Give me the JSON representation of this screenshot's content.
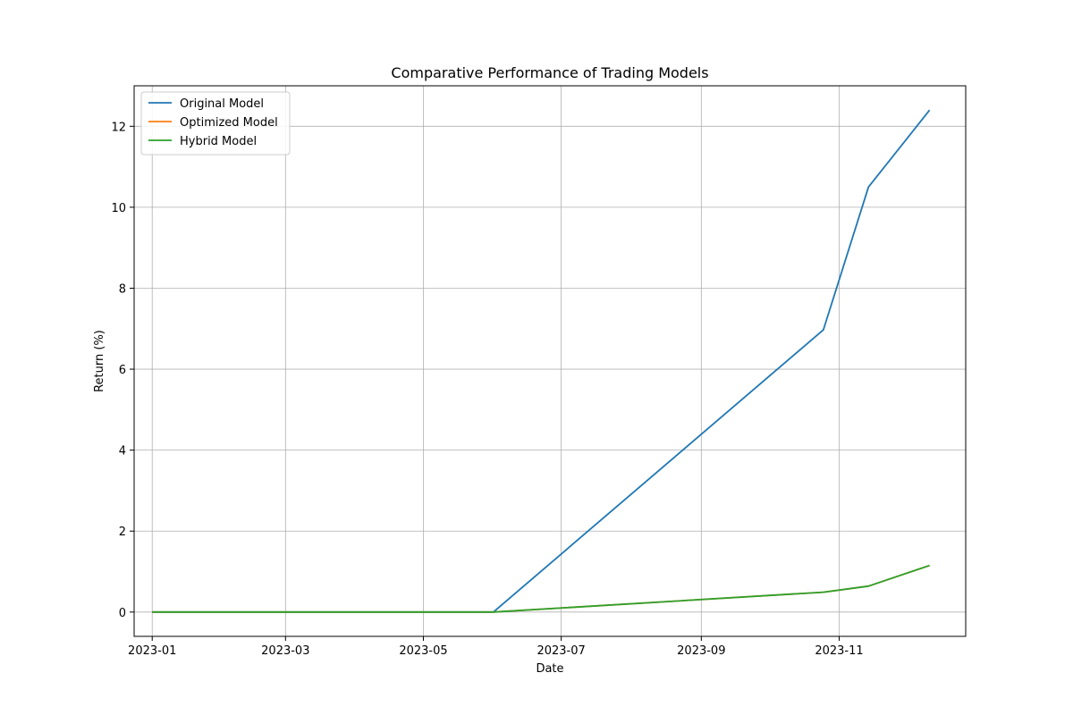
{
  "chart_data": {
    "type": "line",
    "title": "Comparative Performance of Trading Models",
    "xlabel": "Date",
    "ylabel": "Return (%)",
    "x_tick_labels": [
      "2023-01",
      "2023-03",
      "2023-05",
      "2023-07",
      "2023-09",
      "2023-11"
    ],
    "x_tick_dates": [
      "2023-01-01",
      "2023-03-01",
      "2023-05-01",
      "2023-07-01",
      "2023-09-01",
      "2023-11-01"
    ],
    "y_ticks": [
      0,
      2,
      4,
      6,
      8,
      10,
      12
    ],
    "xlim": [
      "2022-12-24",
      "2023-12-27"
    ],
    "ylim": [
      -0.6,
      13.0
    ],
    "grid": true,
    "legend_position": "top-left",
    "series": [
      {
        "name": "Original Model",
        "color": "#1f77b4",
        "points": [
          [
            "2023-01-01",
            0.0
          ],
          [
            "2023-06-01",
            0.0
          ],
          [
            "2023-10-25",
            6.97
          ],
          [
            "2023-11-14",
            10.5
          ],
          [
            "2023-12-11",
            12.4
          ]
        ]
      },
      {
        "name": "Optimized Model",
        "color": "#ff7f0e",
        "points": [
          [
            "2023-01-01",
            0.0
          ],
          [
            "2023-06-01",
            0.0
          ],
          [
            "2023-10-25",
            0.49
          ],
          [
            "2023-11-14",
            0.64
          ],
          [
            "2023-12-11",
            1.15
          ]
        ]
      },
      {
        "name": "Hybrid Model",
        "color": "#2ca02c",
        "points": [
          [
            "2023-01-01",
            0.0
          ],
          [
            "2023-06-01",
            0.0
          ],
          [
            "2023-10-25",
            0.49
          ],
          [
            "2023-11-14",
            0.64
          ],
          [
            "2023-12-11",
            1.15
          ]
        ]
      }
    ]
  }
}
